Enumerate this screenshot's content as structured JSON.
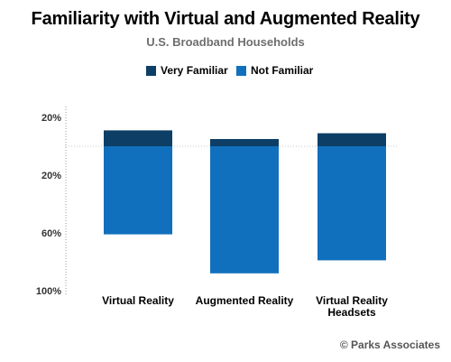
{
  "chart_data": {
    "type": "bar",
    "title": "Familiarity with Virtual and Augmented Reality",
    "subtitle": "U.S. Broadband Households",
    "categories": [
      "Virtual Reality",
      "Augmented Reality",
      "Virtual Reality Headsets"
    ],
    "category_lines": [
      [
        "Virtual Reality"
      ],
      [
        "Augmented Reality"
      ],
      [
        "Virtual Reality",
        "Headsets"
      ]
    ],
    "series": [
      {
        "name": "Very Familiar",
        "color": "#0d3f66",
        "direction": "up",
        "values": [
          11,
          5,
          9
        ]
      },
      {
        "name": "Not Familiar",
        "color": "#1170bd",
        "direction": "down",
        "values": [
          61,
          88,
          79
        ]
      }
    ],
    "y_ticks": [
      {
        "value": 20,
        "label": "20%"
      },
      {
        "value": -20,
        "label": "20%"
      },
      {
        "value": -60,
        "label": "60%"
      },
      {
        "value": -100,
        "label": "100%"
      }
    ],
    "ylim": [
      -100,
      21
    ],
    "grid": false,
    "legend_position": "top-center",
    "source": "© Parks Associates"
  }
}
